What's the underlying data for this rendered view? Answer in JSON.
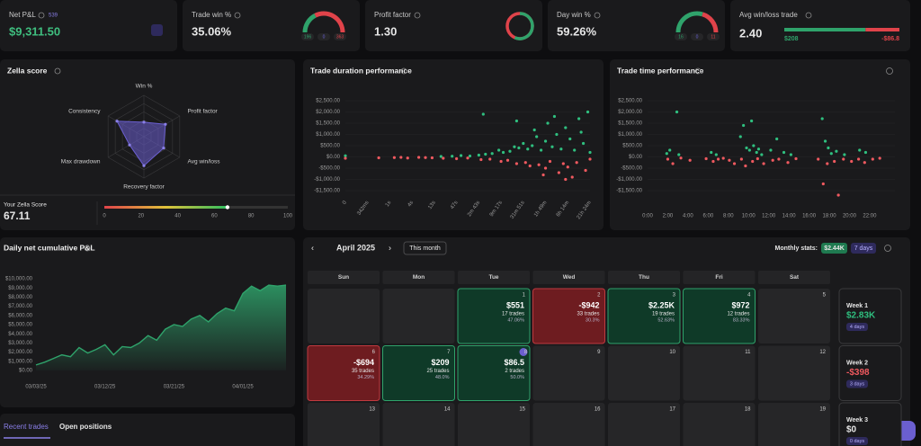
{
  "net_pnl": {
    "label": "Net P&L",
    "value": "$9,311.50",
    "badge": "539"
  },
  "trade_win": {
    "label": "Trade win %",
    "value": "35.06%",
    "type": "gauge",
    "counts": [
      196,
      0,
      363
    ],
    "colors": [
      "#2fa36b",
      "#6b63d9",
      "#e0434a"
    ]
  },
  "profit_factor": {
    "label": "Profit factor",
    "value": "1.30",
    "type": "ring",
    "colors": [
      "#2fa36b",
      "#e0434a"
    ]
  },
  "day_win": {
    "label": "Day win %",
    "value": "59.26%",
    "type": "gauge",
    "counts": [
      16,
      0,
      11
    ],
    "colors": [
      "#2fa36b",
      "#6b63d9",
      "#e0434a"
    ]
  },
  "avg_win_loss": {
    "label": "Avg win/loss trade",
    "value": "2.40",
    "type": "split-bar",
    "values": [
      208,
      -86.8
    ],
    "value_labels": [
      "$208",
      "-$86.8"
    ],
    "colors": [
      "#2fa36b",
      "#e0434a"
    ]
  },
  "zella": {
    "title": "Zella score",
    "type": "radar",
    "axes": [
      "Win %",
      "Profit factor",
      "Avg win/loss",
      "Recovery factor",
      "Max drawdown",
      "Consistency"
    ],
    "values": [
      35,
      60,
      55,
      70,
      40,
      75
    ],
    "rlim": [
      0,
      100
    ],
    "color": "#6b5fd0",
    "score_label": "Your Zella Score",
    "score": 67.11,
    "scale_ticks": [
      0,
      20,
      40,
      60,
      80,
      100
    ]
  },
  "duration_chart": {
    "title": "Trade duration performance",
    "type": "scatter",
    "xlim": [
      0,
      11
    ],
    "xticks": [
      0,
      {
        "value": 1,
        "label": "342ms"
      },
      {
        "value": 2,
        "label": "1s"
      },
      {
        "value": 3,
        "label": "4s"
      },
      {
        "value": 4,
        "label": "13s"
      },
      {
        "value": 5,
        "label": "47s"
      },
      {
        "value": 6,
        "label": "2m 43s"
      },
      {
        "value": 7,
        "label": "9m 17s"
      },
      {
        "value": 8,
        "label": "31m 51s"
      },
      {
        "value": 9,
        "label": "1h 49m"
      },
      {
        "value": 10,
        "label": "6h 14m"
      },
      {
        "value": 11,
        "label": "21h 24m"
      }
    ],
    "ylim": [
      -1500,
      2500
    ],
    "yticks": [
      {
        "value": 2500,
        "label": "$2,500.00"
      },
      {
        "value": 2000,
        "label": "$2,000.00"
      },
      {
        "value": 1500,
        "label": "$1,500.00"
      },
      {
        "value": 1000,
        "label": "$1,000.00"
      },
      {
        "value": 500,
        "label": "$500.00"
      },
      {
        "value": 0,
        "label": "$0.00"
      },
      {
        "value": -500,
        "label": "-$500.00"
      },
      {
        "value": -1000,
        "label": "-$1,000.00"
      },
      {
        "value": -1500,
        "label": "-$1,500.00"
      }
    ],
    "series": [
      {
        "color": "#2fbf7f",
        "x": [
          0,
          4.3,
          4.8,
          5.2,
          5.6,
          6,
          6.3,
          6.6,
          6.9,
          7.1,
          7.4,
          7.6,
          7.8,
          8,
          8.2,
          8.4,
          8.6,
          8.8,
          9,
          9.1,
          9.3,
          9.5,
          9.7,
          9.9,
          10.1,
          10.3,
          10.5,
          10.7,
          10.9,
          11,
          7.7,
          8.5,
          6.2,
          9.4,
          10.6
        ],
        "y": [
          50,
          20,
          30,
          60,
          40,
          80,
          120,
          150,
          300,
          200,
          250,
          450,
          400,
          600,
          350,
          500,
          900,
          300,
          700,
          1500,
          450,
          1000,
          350,
          1300,
          800,
          300,
          1700,
          600,
          2000,
          200,
          1600,
          1200,
          1900,
          1800,
          1100
        ]
      },
      {
        "color": "#f0595f",
        "x": [
          0,
          1.5,
          2.2,
          2.8,
          3.3,
          3.9,
          4.4,
          5,
          5.5,
          6.1,
          6.5,
          7,
          7.3,
          7.7,
          8.1,
          8.3,
          8.7,
          9,
          9.2,
          9.6,
          9.8,
          10,
          10.2,
          10.4,
          10.8,
          11,
          8.9,
          9.9,
          2.5,
          3.6
        ],
        "y": [
          -60,
          -40,
          -30,
          -50,
          -20,
          -40,
          -60,
          -80,
          -50,
          -120,
          -100,
          -200,
          -150,
          -300,
          -250,
          -400,
          -350,
          -500,
          -200,
          -700,
          -300,
          -450,
          -900,
          -250,
          -600,
          -100,
          -800,
          -1000,
          -20,
          -30
        ]
      }
    ]
  },
  "time_chart": {
    "title": "Trade time performance",
    "type": "scatter",
    "xlim": [
      0,
      24.5
    ],
    "xticks": [
      {
        "value": 0,
        "label": "0:00"
      },
      {
        "value": 2,
        "label": "2:00"
      },
      {
        "value": 4,
        "label": "4:00"
      },
      {
        "value": 6,
        "label": "6:00"
      },
      {
        "value": 8,
        "label": "8:00"
      },
      {
        "value": 10,
        "label": "10:00"
      },
      {
        "value": 12,
        "label": "12:00"
      },
      {
        "value": 14,
        "label": "14:00"
      },
      {
        "value": 16,
        "label": "16:00"
      },
      {
        "value": 18,
        "label": "18:00"
      },
      {
        "value": 20,
        "label": "20:00"
      },
      {
        "value": 22,
        "label": "22:00"
      }
    ],
    "ylim": [
      -1500,
      2500
    ],
    "yticks": [
      {
        "value": 2500,
        "label": "$2,500.00"
      },
      {
        "value": 2000,
        "label": "$2,000.00"
      },
      {
        "value": 1500,
        "label": "$1,500.00"
      },
      {
        "value": 1000,
        "label": "$1,000.00"
      },
      {
        "value": 500,
        "label": "$500.00"
      },
      {
        "value": 0,
        "label": "$0.00"
      },
      {
        "value": -500,
        "label": "-$500.00"
      },
      {
        "value": -1000,
        "label": "-$1,000.00"
      },
      {
        "value": -1500,
        "label": "-$1,500.00"
      }
    ],
    "series": [
      {
        "color": "#2fbf7f",
        "x": [
          1.9,
          2.2,
          2.9,
          3.1,
          6.3,
          6.8,
          9.2,
          9.5,
          9.8,
          10.1,
          10.3,
          10.5,
          10.8,
          11,
          11.3,
          12.2,
          12.8,
          13.5,
          14.2,
          17.3,
          17.6,
          17.9,
          18.2,
          18.7,
          19.5,
          21,
          21.6
        ],
        "y": [
          150,
          300,
          2000,
          100,
          200,
          100,
          900,
          1400,
          400,
          300,
          1600,
          500,
          200,
          350,
          100,
          300,
          800,
          200,
          100,
          1700,
          700,
          400,
          150,
          250,
          100,
          300,
          200
        ]
      },
      {
        "color": "#f0595f",
        "x": [
          2,
          2.5,
          3.3,
          4.2,
          5.8,
          6.5,
          7,
          7.5,
          8.1,
          8.6,
          9.3,
          9.7,
          10.4,
          10.9,
          11.5,
          12.4,
          13,
          13.9,
          14.7,
          16.9,
          17.4,
          17.8,
          18.5,
          18.9,
          19.4,
          20.2,
          20.9,
          21.5,
          22.3,
          23
        ],
        "y": [
          -100,
          -300,
          -50,
          -150,
          -80,
          -200,
          -100,
          -60,
          -150,
          -300,
          -100,
          -400,
          -200,
          -80,
          -300,
          -150,
          -100,
          -250,
          -80,
          -100,
          -1200,
          -300,
          -200,
          -1700,
          -100,
          -200,
          -100,
          -250,
          -100,
          -60
        ]
      }
    ]
  },
  "cumulative_chart": {
    "title": "Daily net cumulative P&L",
    "type": "area",
    "color": "#2fa36b",
    "categories": [
      "03/03/25",
      null,
      null,
      null,
      null,
      null,
      null,
      null,
      "03/12/25",
      null,
      null,
      null,
      null,
      null,
      null,
      null,
      "03/21/25",
      null,
      null,
      null,
      null,
      null,
      null,
      null,
      "04/01/25",
      null,
      null,
      null,
      null,
      null
    ],
    "values": [
      600,
      900,
      1300,
      1700,
      1500,
      2500,
      1900,
      2300,
      2800,
      1700,
      2600,
      2500,
      3000,
      3800,
      3300,
      4500,
      5000,
      4800,
      5600,
      6000,
      5300,
      6200,
      6800,
      6500,
      8400,
      9200,
      8700,
      9300,
      9200,
      9311
    ],
    "ylim": [
      0,
      10000
    ],
    "yticks": [
      {
        "value": 0,
        "label": "$0.00"
      },
      {
        "value": 1000,
        "label": "$1,000.00"
      },
      {
        "value": 2000,
        "label": "$2,000.00"
      },
      {
        "value": 3000,
        "label": "$3,000.00"
      },
      {
        "value": 4000,
        "label": "$4,000.00"
      },
      {
        "value": 5000,
        "label": "$5,000.00"
      },
      {
        "value": 6000,
        "label": "$6,000.00"
      },
      {
        "value": 7000,
        "label": "$7,000.00"
      },
      {
        "value": 8000,
        "label": "$8,000.00"
      },
      {
        "value": 9000,
        "label": "$9,000.00"
      },
      {
        "value": 10000,
        "label": "$10,000.00"
      }
    ]
  },
  "calendar": {
    "month": "April 2025",
    "button": "This month",
    "stats_label": "Monthly stats:",
    "stats_pnl": "$2.44K",
    "stats_days": "7 days",
    "weekdays": [
      "Sun",
      "Mon",
      "Tue",
      "Wed",
      "Thu",
      "Fri",
      "Sat"
    ],
    "weeks": [
      [
        null,
        null,
        {
          "day": 1,
          "pnl": "$551",
          "trades": "17 trades",
          "win": "47.06%",
          "color": "green"
        },
        {
          "day": 2,
          "pnl": "-$942",
          "trades": "33 trades",
          "win": "30.3%",
          "color": "red"
        },
        {
          "day": 3,
          "pnl": "$2.25K",
          "trades": "19 trades",
          "win": "52.63%",
          "color": "green"
        },
        {
          "day": 4,
          "pnl": "$972",
          "trades": "12 trades",
          "win": "83.33%",
          "color": "green"
        },
        {
          "day": 5
        }
      ],
      [
        {
          "day": 6,
          "pnl": "-$694",
          "trades": "35 trades",
          "win": "34.29%",
          "color": "red"
        },
        {
          "day": 7,
          "pnl": "$209",
          "trades": "25 trades",
          "win": "48.0%",
          "color": "green"
        },
        {
          "day": 8,
          "pnl": "$86.5",
          "trades": "2 trades",
          "win": "50.0%",
          "color": "green",
          "today": true
        },
        {
          "day": 9
        },
        {
          "day": 10
        },
        {
          "day": 11
        },
        {
          "day": 12
        }
      ],
      [
        {
          "day": 13
        },
        {
          "day": 14
        },
        {
          "day": 15
        },
        {
          "day": 16
        },
        {
          "day": 17
        },
        {
          "day": 18
        },
        {
          "day": 19
        }
      ]
    ],
    "week_summaries": [
      {
        "label": "Week 1",
        "pnl": "$2.83K",
        "days": "4 days",
        "color": "green"
      },
      {
        "label": "Week 2",
        "pnl": "-$398",
        "days": "3 days",
        "color": "red"
      },
      {
        "label": "Week 3",
        "pnl": "$0",
        "days": "0 days",
        "color": "white"
      }
    ]
  },
  "tabs": [
    "Recent trades",
    "Open positions"
  ]
}
